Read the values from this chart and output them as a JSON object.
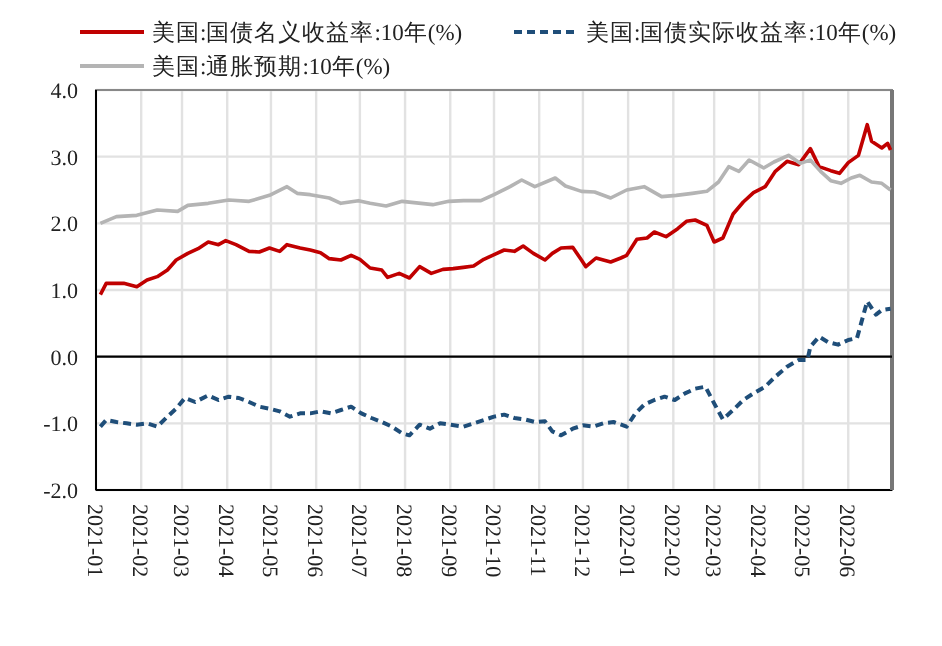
{
  "chart_data": {
    "type": "line",
    "xlim": [
      "2021-01-01",
      "2022-07-01"
    ],
    "xticks": [
      "2021-01",
      "2021-02",
      "2021-03",
      "2021-04",
      "2021-05",
      "2021-06",
      "2021-07",
      "2021-08",
      "2021-09",
      "2021-10",
      "2021-11",
      "2021-12",
      "2022-01",
      "2022-02",
      "2022-03",
      "2022-04",
      "2022-05",
      "2022-06"
    ],
    "ylim": [
      -2,
      4
    ],
    "yticks": [
      {
        "value": -2,
        "label": "-2.0"
      },
      {
        "value": -1,
        "label": "-1.0"
      },
      {
        "value": 0,
        "label": "0.0"
      },
      {
        "value": 1,
        "label": "1.0"
      },
      {
        "value": 2,
        "label": "2.0"
      },
      {
        "value": 3,
        "label": "3.0"
      },
      {
        "value": 4,
        "label": "4.0"
      }
    ],
    "grid": true,
    "legend": "top",
    "ref_lines": [
      {
        "axis": "y",
        "value": 0,
        "color": "#000000"
      }
    ],
    "series": [
      {
        "name": "美国:国债名义收益率:10年(%)",
        "color": "#c00000",
        "line_style": "solid",
        "x": [
          "2021-01-04",
          "2021-01-08",
          "2021-01-20",
          "2021-01-29",
          "2021-02-05",
          "2021-02-12",
          "2021-02-19",
          "2021-02-25",
          "2021-03-05",
          "2021-03-12",
          "2021-03-19",
          "2021-03-26",
          "2021-03-31",
          "2021-04-07",
          "2021-04-16",
          "2021-04-23",
          "2021-04-30",
          "2021-05-07",
          "2021-05-12",
          "2021-05-21",
          "2021-05-28",
          "2021-06-04",
          "2021-06-10",
          "2021-06-18",
          "2021-06-25",
          "2021-07-01",
          "2021-07-08",
          "2021-07-16",
          "2021-07-20",
          "2021-07-28",
          "2021-08-04",
          "2021-08-11",
          "2021-08-19",
          "2021-08-27",
          "2021-09-03",
          "2021-09-10",
          "2021-09-17",
          "2021-09-24",
          "2021-09-30",
          "2021-10-08",
          "2021-10-15",
          "2021-10-21",
          "2021-10-28",
          "2021-11-05",
          "2021-11-10",
          "2021-11-16",
          "2021-11-24",
          "2021-11-30",
          "2021-12-03",
          "2021-12-10",
          "2021-12-20",
          "2021-12-27",
          "2021-12-31",
          "2022-01-07",
          "2022-01-14",
          "2022-01-19",
          "2022-01-27",
          "2022-02-04",
          "2022-02-10",
          "2022-02-16",
          "2022-02-24",
          "2022-03-01",
          "2022-03-07",
          "2022-03-14",
          "2022-03-21",
          "2022-03-28",
          "2022-04-05",
          "2022-04-12",
          "2022-04-20",
          "2022-04-28",
          "2022-05-06",
          "2022-05-12",
          "2022-05-20",
          "2022-05-26",
          "2022-06-01",
          "2022-06-08",
          "2022-06-14",
          "2022-06-17",
          "2022-06-24",
          "2022-06-28",
          "2022-06-30"
        ],
        "values": [
          0.93,
          1.1,
          1.1,
          1.05,
          1.15,
          1.2,
          1.3,
          1.45,
          1.55,
          1.62,
          1.72,
          1.68,
          1.74,
          1.68,
          1.58,
          1.57,
          1.63,
          1.58,
          1.68,
          1.63,
          1.6,
          1.56,
          1.47,
          1.45,
          1.52,
          1.46,
          1.33,
          1.3,
          1.19,
          1.25,
          1.18,
          1.35,
          1.25,
          1.31,
          1.32,
          1.34,
          1.36,
          1.46,
          1.52,
          1.6,
          1.58,
          1.66,
          1.55,
          1.45,
          1.55,
          1.63,
          1.64,
          1.45,
          1.35,
          1.48,
          1.42,
          1.48,
          1.52,
          1.76,
          1.78,
          1.87,
          1.8,
          1.92,
          2.03,
          2.05,
          1.97,
          1.72,
          1.78,
          2.14,
          2.32,
          2.46,
          2.55,
          2.78,
          2.93,
          2.88,
          3.12,
          2.85,
          2.79,
          2.75,
          2.91,
          3.02,
          3.48,
          3.23,
          3.13,
          3.2,
          3.1
        ]
      },
      {
        "name": "美国:国债实际收益率:10年(%)",
        "color": "#1f4e79",
        "line_style": "dashed",
        "x": [
          "2021-01-04",
          "2021-01-08",
          "2021-01-15",
          "2021-01-22",
          "2021-01-29",
          "2021-02-05",
          "2021-02-12",
          "2021-02-19",
          "2021-02-25",
          "2021-03-03",
          "2021-03-10",
          "2021-03-19",
          "2021-03-26",
          "2021-04-02",
          "2021-04-09",
          "2021-04-16",
          "2021-04-23",
          "2021-04-30",
          "2021-05-07",
          "2021-05-14",
          "2021-05-21",
          "2021-05-28",
          "2021-06-04",
          "2021-06-11",
          "2021-06-18",
          "2021-06-25",
          "2021-07-02",
          "2021-07-09",
          "2021-07-16",
          "2021-07-23",
          "2021-07-30",
          "2021-08-04",
          "2021-08-11",
          "2021-08-18",
          "2021-08-25",
          "2021-09-01",
          "2021-09-10",
          "2021-09-17",
          "2021-09-24",
          "2021-10-01",
          "2021-10-08",
          "2021-10-15",
          "2021-10-22",
          "2021-10-29",
          "2021-11-05",
          "2021-11-10",
          "2021-11-16",
          "2021-11-24",
          "2021-12-01",
          "2021-12-08",
          "2021-12-15",
          "2021-12-22",
          "2021-12-31",
          "2022-01-06",
          "2022-01-12",
          "2022-01-19",
          "2022-01-26",
          "2022-02-02",
          "2022-02-09",
          "2022-02-16",
          "2022-02-23",
          "2022-03-01",
          "2022-03-07",
          "2022-03-14",
          "2022-03-21",
          "2022-03-28",
          "2022-04-05",
          "2022-04-12",
          "2022-04-20",
          "2022-04-28",
          "2022-05-04",
          "2022-05-06",
          "2022-05-12",
          "2022-05-18",
          "2022-05-25",
          "2022-06-01",
          "2022-06-07",
          "2022-06-14",
          "2022-06-20",
          "2022-06-24",
          "2022-06-30"
        ],
        "values": [
          -1.05,
          -0.95,
          -0.98,
          -1.0,
          -1.02,
          -1.0,
          -1.05,
          -0.9,
          -0.78,
          -0.62,
          -0.68,
          -0.58,
          -0.65,
          -0.6,
          -0.62,
          -0.68,
          -0.75,
          -0.78,
          -0.82,
          -0.9,
          -0.85,
          -0.85,
          -0.82,
          -0.85,
          -0.8,
          -0.75,
          -0.85,
          -0.92,
          -0.98,
          -1.05,
          -1.15,
          -1.18,
          -1.02,
          -1.08,
          -1.0,
          -1.02,
          -1.05,
          -1.0,
          -0.95,
          -0.9,
          -0.87,
          -0.92,
          -0.94,
          -0.98,
          -0.97,
          -1.12,
          -1.18,
          -1.08,
          -1.03,
          -1.05,
          -1.0,
          -0.98,
          -1.05,
          -0.85,
          -0.72,
          -0.65,
          -0.6,
          -0.65,
          -0.55,
          -0.48,
          -0.45,
          -0.7,
          -0.94,
          -0.8,
          -0.65,
          -0.55,
          -0.45,
          -0.3,
          -0.15,
          -0.05,
          -0.05,
          0.15,
          0.3,
          0.22,
          0.18,
          0.25,
          0.28,
          0.83,
          0.63,
          0.7,
          0.72
        ]
      },
      {
        "name": "美国:通胀预期:10年(%)",
        "color": "#b4b4b4",
        "line_style": "solid",
        "x": [
          "2021-01-04",
          "2021-01-15",
          "2021-01-29",
          "2021-02-12",
          "2021-02-26",
          "2021-03-05",
          "2021-03-19",
          "2021-04-02",
          "2021-04-16",
          "2021-04-30",
          "2021-05-12",
          "2021-05-19",
          "2021-05-28",
          "2021-06-10",
          "2021-06-18",
          "2021-06-30",
          "2021-07-08",
          "2021-07-19",
          "2021-07-30",
          "2021-08-12",
          "2021-08-20",
          "2021-08-31",
          "2021-09-10",
          "2021-09-22",
          "2021-10-01",
          "2021-10-12",
          "2021-10-20",
          "2021-10-29",
          "2021-11-12",
          "2021-11-19",
          "2021-11-30",
          "2021-12-09",
          "2021-12-20",
          "2021-12-31",
          "2022-01-12",
          "2022-01-24",
          "2022-02-03",
          "2022-02-14",
          "2022-02-24",
          "2022-03-04",
          "2022-03-11",
          "2022-03-18",
          "2022-03-25",
          "2022-04-04",
          "2022-04-11",
          "2022-04-21",
          "2022-04-29",
          "2022-05-06",
          "2022-05-13",
          "2022-05-20",
          "2022-05-27",
          "2022-06-03",
          "2022-06-09",
          "2022-06-17",
          "2022-06-24",
          "2022-06-30"
        ],
        "values": [
          2.0,
          2.1,
          2.12,
          2.2,
          2.18,
          2.27,
          2.3,
          2.35,
          2.33,
          2.42,
          2.55,
          2.45,
          2.43,
          2.38,
          2.3,
          2.34,
          2.3,
          2.26,
          2.33,
          2.3,
          2.28,
          2.33,
          2.34,
          2.34,
          2.43,
          2.55,
          2.65,
          2.55,
          2.68,
          2.56,
          2.48,
          2.47,
          2.38,
          2.5,
          2.55,
          2.4,
          2.42,
          2.45,
          2.48,
          2.62,
          2.85,
          2.78,
          2.95,
          2.83,
          2.92,
          3.02,
          2.9,
          2.95,
          2.78,
          2.64,
          2.6,
          2.68,
          2.72,
          2.62,
          2.6,
          2.5
        ]
      }
    ]
  }
}
